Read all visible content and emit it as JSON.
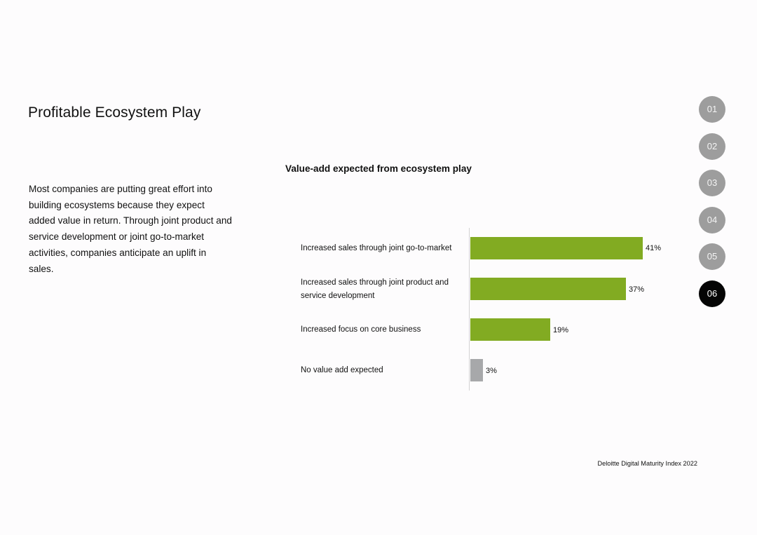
{
  "page": {
    "title": "Profitable Ecosystem Play",
    "body": "Most companies are putting great effort into building ecosystems because they expect added value in return. Through joint product and service development  or joint go-to-market activities, companies anticipate an uplift in sales.",
    "footer": "Deloitte Digital Maturity Index 2022"
  },
  "nav": {
    "items": [
      "01",
      "02",
      "03",
      "04",
      "05",
      "06"
    ],
    "active_index": 5
  },
  "chart_data": {
    "type": "bar",
    "orientation": "horizontal",
    "title": "Value-add expected from ecosystem play",
    "categories": [
      "Increased sales through joint go-to-market",
      "Increased sales through joint product and service development",
      "Increased focus on core business",
      "No value add expected"
    ],
    "values": [
      41,
      37,
      19,
      3
    ],
    "value_labels": [
      "41%",
      "37%",
      "19%",
      "3%"
    ],
    "colors": [
      "#82ab22",
      "#82ab22",
      "#82ab22",
      "#a7a8aa"
    ],
    "xlim": [
      0,
      100
    ],
    "unit": "%",
    "grid": false
  }
}
